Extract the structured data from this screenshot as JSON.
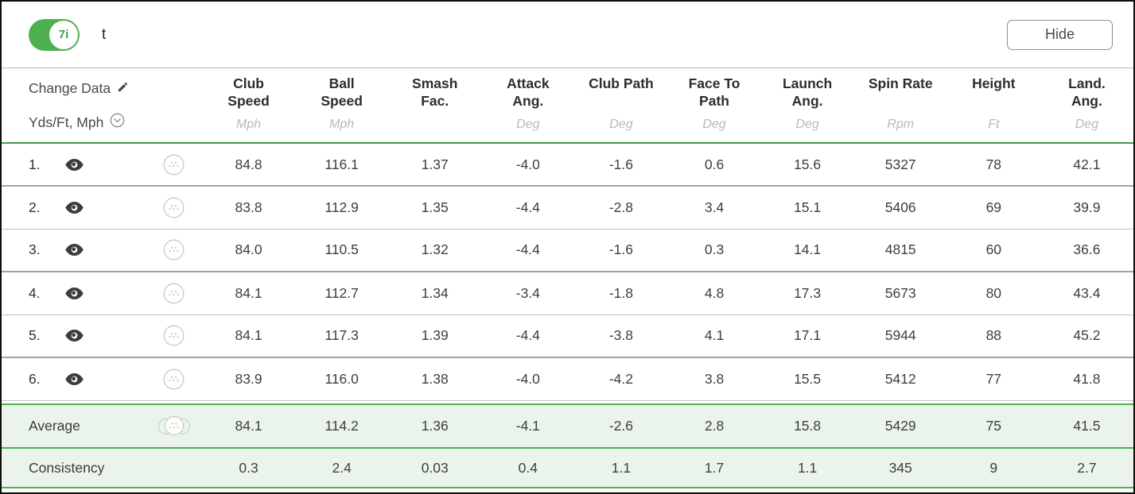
{
  "topbar": {
    "toggle_label": "7i",
    "toggle_state": "on",
    "session_label": "t",
    "hide_button": "Hide"
  },
  "header": {
    "change_data": "Change Data",
    "units_selector": "Yds/Ft, Mph",
    "columns": [
      {
        "lines": [
          "Club",
          "Speed"
        ],
        "unit": "Mph"
      },
      {
        "lines": [
          "Ball",
          "Speed"
        ],
        "unit": "Mph"
      },
      {
        "lines": [
          "Smash",
          "Fac."
        ],
        "unit": ""
      },
      {
        "lines": [
          "Attack",
          "Ang."
        ],
        "unit": "Deg"
      },
      {
        "lines": [
          "Club Path"
        ],
        "unit": "Deg"
      },
      {
        "lines": [
          "Face To",
          "Path"
        ],
        "unit": "Deg"
      },
      {
        "lines": [
          "Launch",
          "Ang."
        ],
        "unit": "Deg"
      },
      {
        "lines": [
          "Spin Rate"
        ],
        "unit": "Rpm"
      },
      {
        "lines": [
          "Height"
        ],
        "unit": "Ft"
      },
      {
        "lines": [
          "Land.",
          "Ang."
        ],
        "unit": "Deg"
      }
    ]
  },
  "rows": [
    {
      "num": "1.",
      "values": [
        "84.8",
        "116.1",
        "1.37",
        "-4.0",
        "-1.6",
        "0.6",
        "15.6",
        "5327",
        "78",
        "42.1"
      ]
    },
    {
      "num": "2.",
      "values": [
        "83.8",
        "112.9",
        "1.35",
        "-4.4",
        "-2.8",
        "3.4",
        "15.1",
        "5406",
        "69",
        "39.9"
      ]
    },
    {
      "num": "3.",
      "values": [
        "84.0",
        "110.5",
        "1.32",
        "-4.4",
        "-1.6",
        "0.3",
        "14.1",
        "4815",
        "60",
        "36.6"
      ]
    },
    {
      "num": "4.",
      "values": [
        "84.1",
        "112.7",
        "1.34",
        "-3.4",
        "-1.8",
        "4.8",
        "17.3",
        "5673",
        "80",
        "43.4"
      ]
    },
    {
      "num": "5.",
      "values": [
        "84.1",
        "117.3",
        "1.39",
        "-4.4",
        "-3.8",
        "4.1",
        "17.1",
        "5944",
        "88",
        "45.2"
      ]
    },
    {
      "num": "6.",
      "values": [
        "83.9",
        "116.0",
        "1.38",
        "-4.0",
        "-4.2",
        "3.8",
        "15.5",
        "5412",
        "77",
        "41.8"
      ]
    }
  ],
  "summary": {
    "average": {
      "label": "Average",
      "values": [
        "84.1",
        "114.2",
        "1.36",
        "-4.1",
        "-2.6",
        "2.8",
        "15.8",
        "5429",
        "75",
        "41.5"
      ]
    },
    "consistency": {
      "label": "Consistency",
      "values": [
        "0.3",
        "2.4",
        "0.03",
        "0.4",
        "1.1",
        "1.7",
        "1.1",
        "345",
        "9",
        "2.7"
      ]
    }
  },
  "icons": {
    "visibility": "eye-icon",
    "ball": "golf-ball-icon",
    "average": "golf-ball-stack-icon",
    "edit": "pencil-icon",
    "units": "chevron-down-circle-icon"
  },
  "colors": {
    "accent_green": "#4caf50",
    "header_rule_green": "#449a45",
    "summary_row_bg": "#ebf4eb",
    "toggle_knob_text": "#3e9f44"
  }
}
